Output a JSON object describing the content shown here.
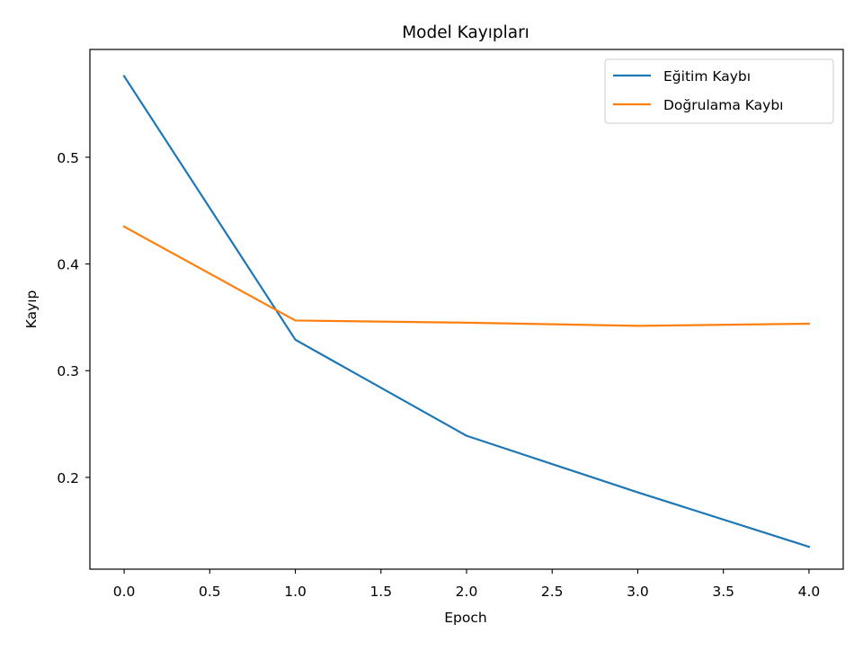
{
  "chart_data": {
    "type": "line",
    "title": "Model Kayıpları",
    "xlabel": "Epoch",
    "ylabel": "Kayıp",
    "x": [
      0,
      1,
      2,
      3,
      4
    ],
    "xlim": [
      -0.2,
      4.2
    ],
    "ylim": [
      0.114,
      0.601
    ],
    "xticks": [
      0.0,
      0.5,
      1.0,
      1.5,
      2.0,
      2.5,
      3.0,
      3.5,
      4.0
    ],
    "xtick_labels": [
      "0.0",
      "0.5",
      "1.0",
      "1.5",
      "2.0",
      "2.5",
      "3.0",
      "3.5",
      "4.0"
    ],
    "yticks": [
      0.2,
      0.3,
      0.4,
      0.5
    ],
    "ytick_labels": [
      "0.2",
      "0.3",
      "0.4",
      "0.5"
    ],
    "grid": false,
    "legend_position": "top-right",
    "series": [
      {
        "name": "Eğitim Kaybı",
        "color": "#1f77b4",
        "values": [
          0.576,
          0.329,
          0.239,
          0.186,
          0.135
        ]
      },
      {
        "name": "Doğrulama Kaybı",
        "color": "#ff7f0e",
        "values": [
          0.435,
          0.347,
          0.345,
          0.342,
          0.344
        ]
      }
    ]
  }
}
